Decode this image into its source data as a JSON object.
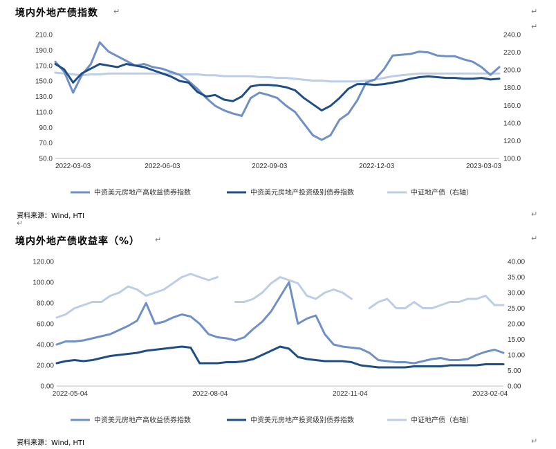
{
  "charts": [
    {
      "title": "境内外地产债指数",
      "source": "资料来源：Wind, HTI",
      "chart_data": {
        "type": "line",
        "left_axis": {
          "min": 50,
          "max": 210,
          "ticks": [
            "50.0",
            "70.0",
            "90.0",
            "110.0",
            "130.0",
            "150.0",
            "170.0",
            "190.0",
            "210.0"
          ]
        },
        "right_axis": {
          "min": 100,
          "max": 240,
          "ticks": [
            "100.0",
            "120.0",
            "140.0",
            "160.0",
            "180.0",
            "200.0",
            "220.0",
            "240.0"
          ]
        },
        "x_ticks": [
          "2022-03-03",
          "2022-06-03",
          "2022-09-03",
          "2022-12-03",
          "2023-03-03"
        ],
        "x": [
          0,
          0.02,
          0.04,
          0.06,
          0.08,
          0.1,
          0.12,
          0.14,
          0.16,
          0.18,
          0.2,
          0.22,
          0.24,
          0.26,
          0.28,
          0.3,
          0.32,
          0.34,
          0.36,
          0.38,
          0.4,
          0.42,
          0.44,
          0.46,
          0.48,
          0.5,
          0.52,
          0.54,
          0.56,
          0.58,
          0.6,
          0.62,
          0.64,
          0.66,
          0.68,
          0.7,
          0.72,
          0.74,
          0.76,
          0.78,
          0.8,
          0.82,
          0.84,
          0.86,
          0.88,
          0.9,
          0.92,
          0.94,
          0.96,
          0.98,
          1.0
        ],
        "series": [
          {
            "name": "中资美元房地产高收益债券指数",
            "axis": "left",
            "color": "#6f8fc7",
            "values": [
              175,
              162,
              135,
              158,
              172,
              200,
              188,
              182,
              176,
              170,
              172,
              168,
              166,
              162,
              158,
              150,
              140,
              128,
              118,
              112,
              108,
              105,
              128,
              135,
              132,
              128,
              118,
              110,
              95,
              80,
              74,
              80,
              100,
              108,
              125,
              148,
              152,
              165,
              183,
              184,
              185,
              188,
              187,
              183,
              182,
              182,
              178,
              175,
              168,
              158,
              168
            ]
          },
          {
            "name": "中资美元房地产投资级别债券指数",
            "axis": "left",
            "color": "#1f4e86",
            "values": [
              172,
              165,
              148,
              160,
              166,
              172,
              170,
              168,
              172,
              170,
              168,
              164,
              160,
              156,
              150,
              148,
              136,
              130,
              132,
              126,
              124,
              130,
              143,
              145,
              145,
              144,
              142,
              138,
              128,
              120,
              112,
              118,
              128,
              140,
              146,
              146,
              145,
              146,
              148,
              150,
              153,
              155,
              156,
              155,
              154,
              154,
              153,
              153,
              154,
              152,
              153
            ]
          },
          {
            "name": "中证地产债（右轴）",
            "axis": "right",
            "color": "#bccde8",
            "values": [
              197,
              196,
              195,
              194,
              195,
              195,
              196,
              196,
              196,
              196,
              196,
              196,
              196,
              196,
              195,
              195,
              195,
              194,
              194,
              193,
              193,
              193,
              193,
              192,
              192,
              191,
              191,
              190,
              189,
              188,
              188,
              187,
              187,
              187,
              187,
              188,
              189,
              191,
              193,
              194,
              195,
              196,
              196,
              196,
              196,
              196,
              196,
              196,
              196,
              196,
              196
            ]
          }
        ]
      }
    },
    {
      "title": "境内外地产债收益率（%）",
      "source": "资料来源：Wind, HTI",
      "chart_data": {
        "type": "line",
        "left_axis": {
          "min": 0,
          "max": 120,
          "ticks": [
            "0.00",
            "20.00",
            "40.00",
            "60.00",
            "80.00",
            "100.00",
            "120.00"
          ]
        },
        "right_axis": {
          "min": 0,
          "max": 40,
          "ticks": [
            "0.00",
            "5.00",
            "10.00",
            "15.00",
            "20.00",
            "25.00",
            "30.00",
            "35.00",
            "40.00"
          ]
        },
        "x_ticks": [
          "2022-05-04",
          "2022-08-04",
          "2022-11-04",
          "2023-02-04"
        ],
        "x": [
          0,
          0.02,
          0.04,
          0.06,
          0.08,
          0.1,
          0.12,
          0.14,
          0.16,
          0.18,
          0.2,
          0.22,
          0.24,
          0.26,
          0.28,
          0.3,
          0.32,
          0.34,
          0.36,
          0.38,
          0.4,
          0.42,
          0.44,
          0.46,
          0.48,
          0.5,
          0.52,
          0.54,
          0.56,
          0.58,
          0.6,
          0.62,
          0.64,
          0.66,
          0.68,
          0.7,
          0.72,
          0.74,
          0.76,
          0.78,
          0.8,
          0.82,
          0.84,
          0.86,
          0.88,
          0.9,
          0.92,
          0.94,
          0.96,
          0.98,
          1.0
        ],
        "series": [
          {
            "name": "中资美元房地产高收益债券指数",
            "axis": "left",
            "color": "#6f8fc7",
            "values": [
              40,
              43,
              43,
              44,
              46,
              48,
              50,
              54,
              58,
              63,
              80,
              60,
              62,
              66,
              69,
              67,
              60,
              50,
              47,
              46,
              44,
              47,
              55,
              62,
              72,
              86,
              100,
              60,
              65,
              68,
              50,
              40,
              38,
              37,
              36,
              32,
              25,
              24,
              23,
              23,
              22,
              24,
              26,
              27,
              25,
              25,
              26,
              30,
              33,
              35,
              32
            ]
          },
          {
            "name": "中资美元房地产投资级别债券指数",
            "axis": "left",
            "color": "#1f4e86",
            "values": [
              22,
              24,
              25,
              24,
              25,
              27,
              29,
              30,
              31,
              32,
              34,
              35,
              36,
              37,
              38,
              37,
              22,
              22,
              22,
              23,
              23,
              24,
              26,
              30,
              34,
              38,
              36,
              28,
              26,
              25,
              24,
              24,
              24,
              23,
              20,
              19,
              18,
              18,
              18,
              18,
              19,
              19,
              19,
              19,
              20,
              20,
              20,
              20,
              21,
              21,
              21
            ]
          },
          {
            "name": "中证地产债（右轴）",
            "axis": "right",
            "color": "#bccde8",
            "values": [
              22,
              23,
              25,
              26,
              27,
              27,
              29,
              30,
              32,
              31,
              29,
              30,
              31,
              33,
              35,
              36,
              35,
              34,
              35,
              null,
              27,
              27,
              28,
              30,
              33,
              35,
              34,
              33,
              29,
              28,
              30,
              31,
              30,
              28,
              null,
              25,
              27,
              28,
              25,
              25,
              27,
              25,
              25,
              26,
              27,
              27,
              28,
              28,
              29,
              26,
              26
            ]
          }
        ]
      }
    }
  ]
}
